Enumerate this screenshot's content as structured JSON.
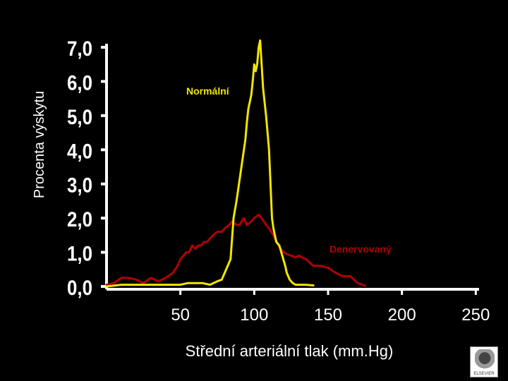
{
  "chart_data": {
    "type": "line",
    "title": "",
    "xlabel": "Střední arteriální tlak (mm.Hg)",
    "ylabel": "Procenta výskytu",
    "xlim": [
      0,
      250
    ],
    "ylim": [
      0,
      7
    ],
    "x_ticks": [
      50,
      100,
      150,
      200,
      250
    ],
    "x_tick_labels": [
      "50",
      "100",
      "150",
      "200",
      "250"
    ],
    "y_ticks": [
      0,
      1,
      2,
      3,
      4,
      5,
      6,
      7
    ],
    "y_tick_labels": [
      "0,0",
      "1,0",
      "2,0",
      "3,0",
      "4,0",
      "5,0",
      "6,0",
      "7,0"
    ],
    "grid": false,
    "series": [
      {
        "name": "Normální",
        "color": "#f2e600",
        "x": [
          0,
          10,
          20,
          30,
          40,
          50,
          55,
          60,
          65,
          70,
          75,
          78,
          80,
          82,
          84,
          86,
          88,
          90,
          92,
          94,
          95,
          96,
          98,
          99,
          100,
          101,
          102,
          103,
          104,
          105,
          106,
          107,
          108,
          110,
          111,
          112,
          113,
          114,
          115,
          117,
          119,
          121,
          122,
          123,
          124,
          126,
          128,
          130,
          135,
          140
        ],
        "y": [
          0.0,
          0.05,
          0.05,
          0.05,
          0.05,
          0.05,
          0.1,
          0.1,
          0.1,
          0.05,
          0.15,
          0.2,
          0.4,
          0.6,
          0.8,
          2.0,
          2.5,
          3.1,
          3.7,
          4.3,
          4.8,
          5.2,
          5.6,
          6.0,
          6.5,
          6.3,
          6.5,
          7.0,
          7.2,
          6.5,
          5.8,
          5.4,
          5.0,
          4.0,
          3.0,
          2.0,
          1.7,
          1.5,
          1.3,
          1.2,
          0.9,
          0.6,
          0.4,
          0.3,
          0.2,
          0.1,
          0.05,
          0.05,
          0.05,
          0.03
        ]
      },
      {
        "name": "Denervovaný",
        "color": "#b30000",
        "x": [
          0,
          5,
          10,
          15,
          20,
          25,
          30,
          35,
          40,
          45,
          48,
          50,
          52,
          54,
          56,
          58,
          60,
          62,
          64,
          66,
          68,
          70,
          72,
          75,
          78,
          80,
          83,
          85,
          88,
          90,
          93,
          95,
          98,
          100,
          103,
          105,
          108,
          110,
          113,
          115,
          118,
          120,
          122,
          125,
          128,
          130,
          135,
          140,
          145,
          150,
          155,
          160,
          165,
          170,
          175
        ],
        "y": [
          0.05,
          0.1,
          0.25,
          0.25,
          0.2,
          0.1,
          0.25,
          0.15,
          0.25,
          0.4,
          0.6,
          0.8,
          0.9,
          1.0,
          1.0,
          1.2,
          1.1,
          1.2,
          1.2,
          1.3,
          1.3,
          1.4,
          1.5,
          1.6,
          1.6,
          1.7,
          1.8,
          1.9,
          1.8,
          1.8,
          2.0,
          1.8,
          1.9,
          2.0,
          2.1,
          2.0,
          1.8,
          1.7,
          1.5,
          1.3,
          1.1,
          1.0,
          0.95,
          0.9,
          0.85,
          0.9,
          0.8,
          0.6,
          0.6,
          0.55,
          0.4,
          0.3,
          0.3,
          0.1,
          0.02
        ]
      }
    ],
    "annotations": [
      "Normální",
      "Denervovaný"
    ]
  },
  "logo_text": "ELSEVIER"
}
